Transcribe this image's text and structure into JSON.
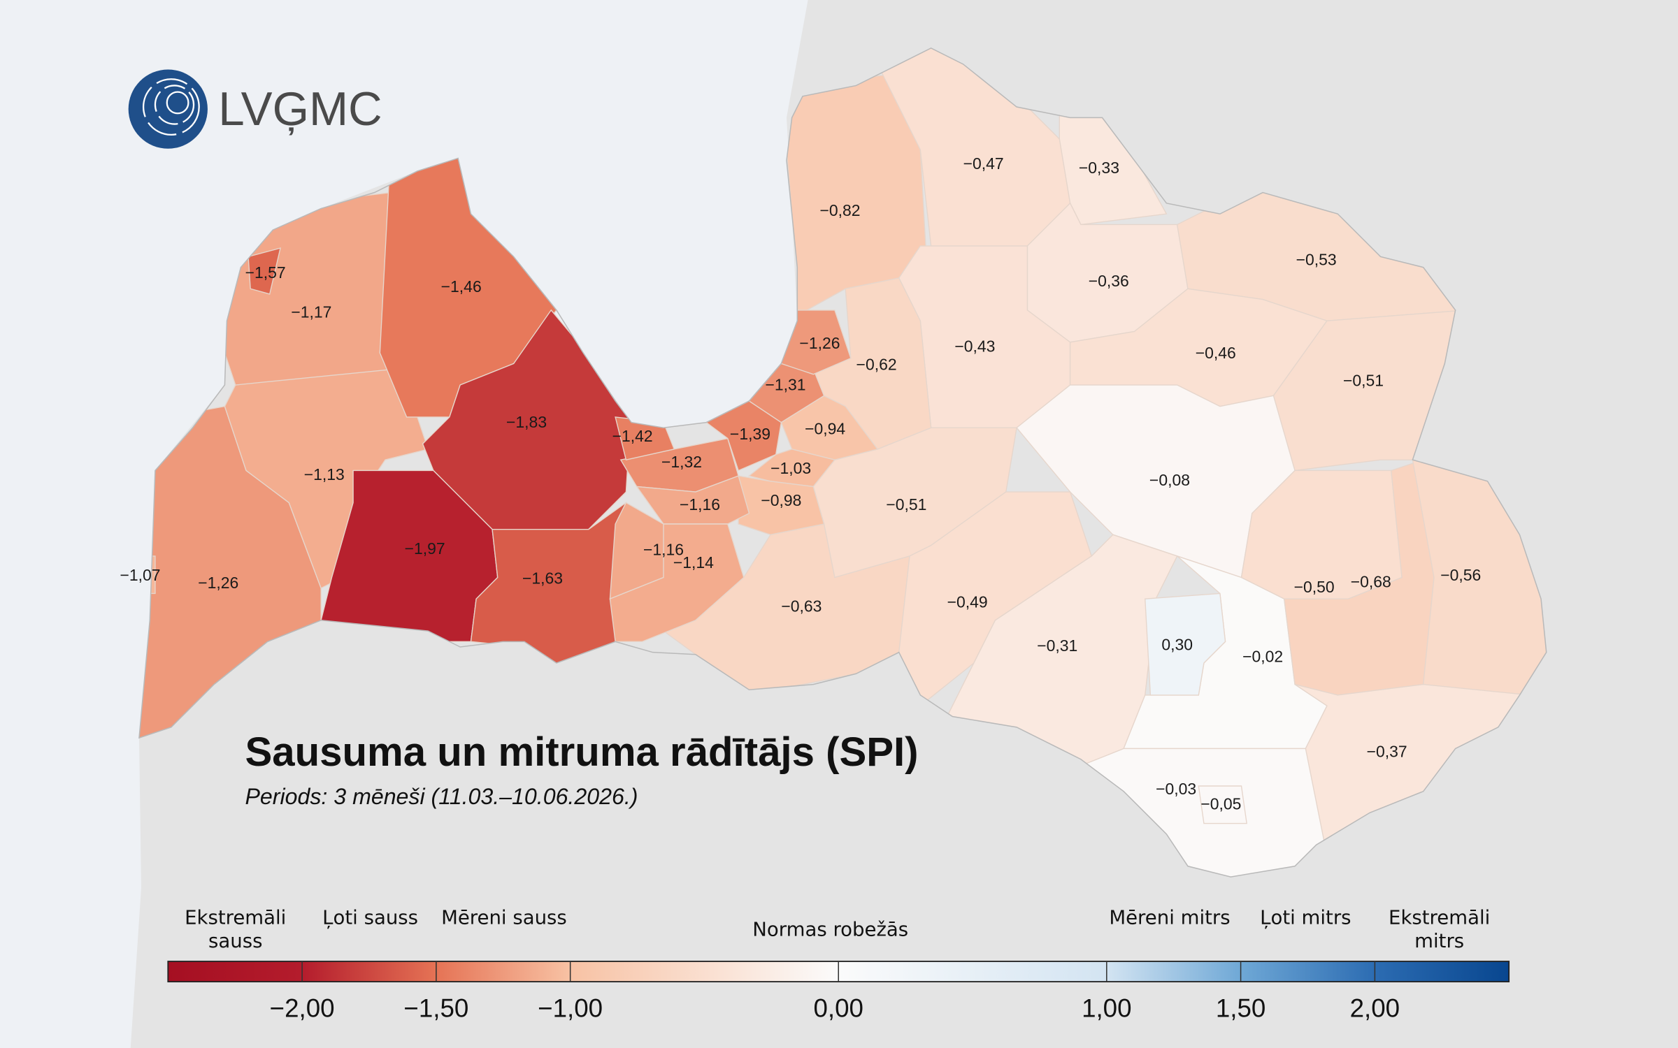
{
  "logo": {
    "text": "LVĢMC"
  },
  "chart_data": {
    "type": "choropleth",
    "title": "Sausuma un mitruma rādītājs (SPI)",
    "subtitle": "Periods: 3 mēneši (11.03.–10.06.2026.)",
    "regions": {
      "values": [
        -1.26,
        -1.13,
        -1.17,
        -1.46,
        -1.83,
        -1.97,
        -1.63,
        -0.82,
        -0.47,
        -0.33,
        -0.36,
        -0.53,
        -0.43,
        -0.46,
        -0.51,
        -0.51,
        -0.08,
        -0.63,
        -0.49,
        -0.31,
        -0.02,
        -0.5,
        -0.68,
        -0.56,
        -0.37,
        -0.03,
        -0.62,
        -0.94,
        -1.03,
        -0.98,
        -1.32,
        -1.16,
        -1.16,
        -1.14,
        -1.39,
        -1.31,
        -1.26,
        -1.42,
        -1.57,
        -1.07,
        0.3,
        -0.05
      ],
      "value_labels": [
        "−1,26",
        "−1,13",
        "−1,17",
        "−1,46",
        "−1,83",
        "−1,97",
        "−1,63",
        "−0,82",
        "−0,47",
        "−0,33",
        "−0,36",
        "−0,53",
        "−0,43",
        "−0,46",
        "−0,51",
        "−0,51",
        "−0,08",
        "−0,63",
        "−0,49",
        "−0,31",
        "−0,02",
        "−0,50",
        "−0,68",
        "−0,56",
        "−0,37",
        "−0,03",
        "−0,62",
        "−0,94",
        "−1,03",
        "−0,98",
        "−1,32",
        "−1,16",
        "−1,16",
        "−1,14",
        "−1,39",
        "−1,31",
        "−1,26",
        "−1,42",
        "−1,57",
        "−1,07",
        "0,30",
        "−0,05"
      ]
    },
    "legend": {
      "clim": [
        -2.5,
        2.5
      ],
      "ticks": [
        {
          "value": -2,
          "label": "−2,00"
        },
        {
          "value": -1.5,
          "label": "−1,50"
        },
        {
          "value": -1,
          "label": "−1,00"
        },
        {
          "value": 0,
          "label": "0,00"
        },
        {
          "value": 1,
          "label": "1,00"
        },
        {
          "value": 1.5,
          "label": "1,50"
        },
        {
          "value": 2,
          "label": "2,00"
        }
      ],
      "colors": [
        "#a50f22",
        "#b41c2c",
        "#e57355",
        "#f8c2a4",
        "#fbfbfb",
        "#d3e4f2",
        "#6fa8d6",
        "#2c6cb2",
        "#08468f"
      ],
      "categories": [
        "Ekstremāli sauss",
        "Ļoti sauss",
        "Mēreni sauss",
        "Normas robežās",
        "Mēreni mitrs",
        "Ļoti mitrs",
        "Ekstremāli mitrs"
      ]
    }
  }
}
